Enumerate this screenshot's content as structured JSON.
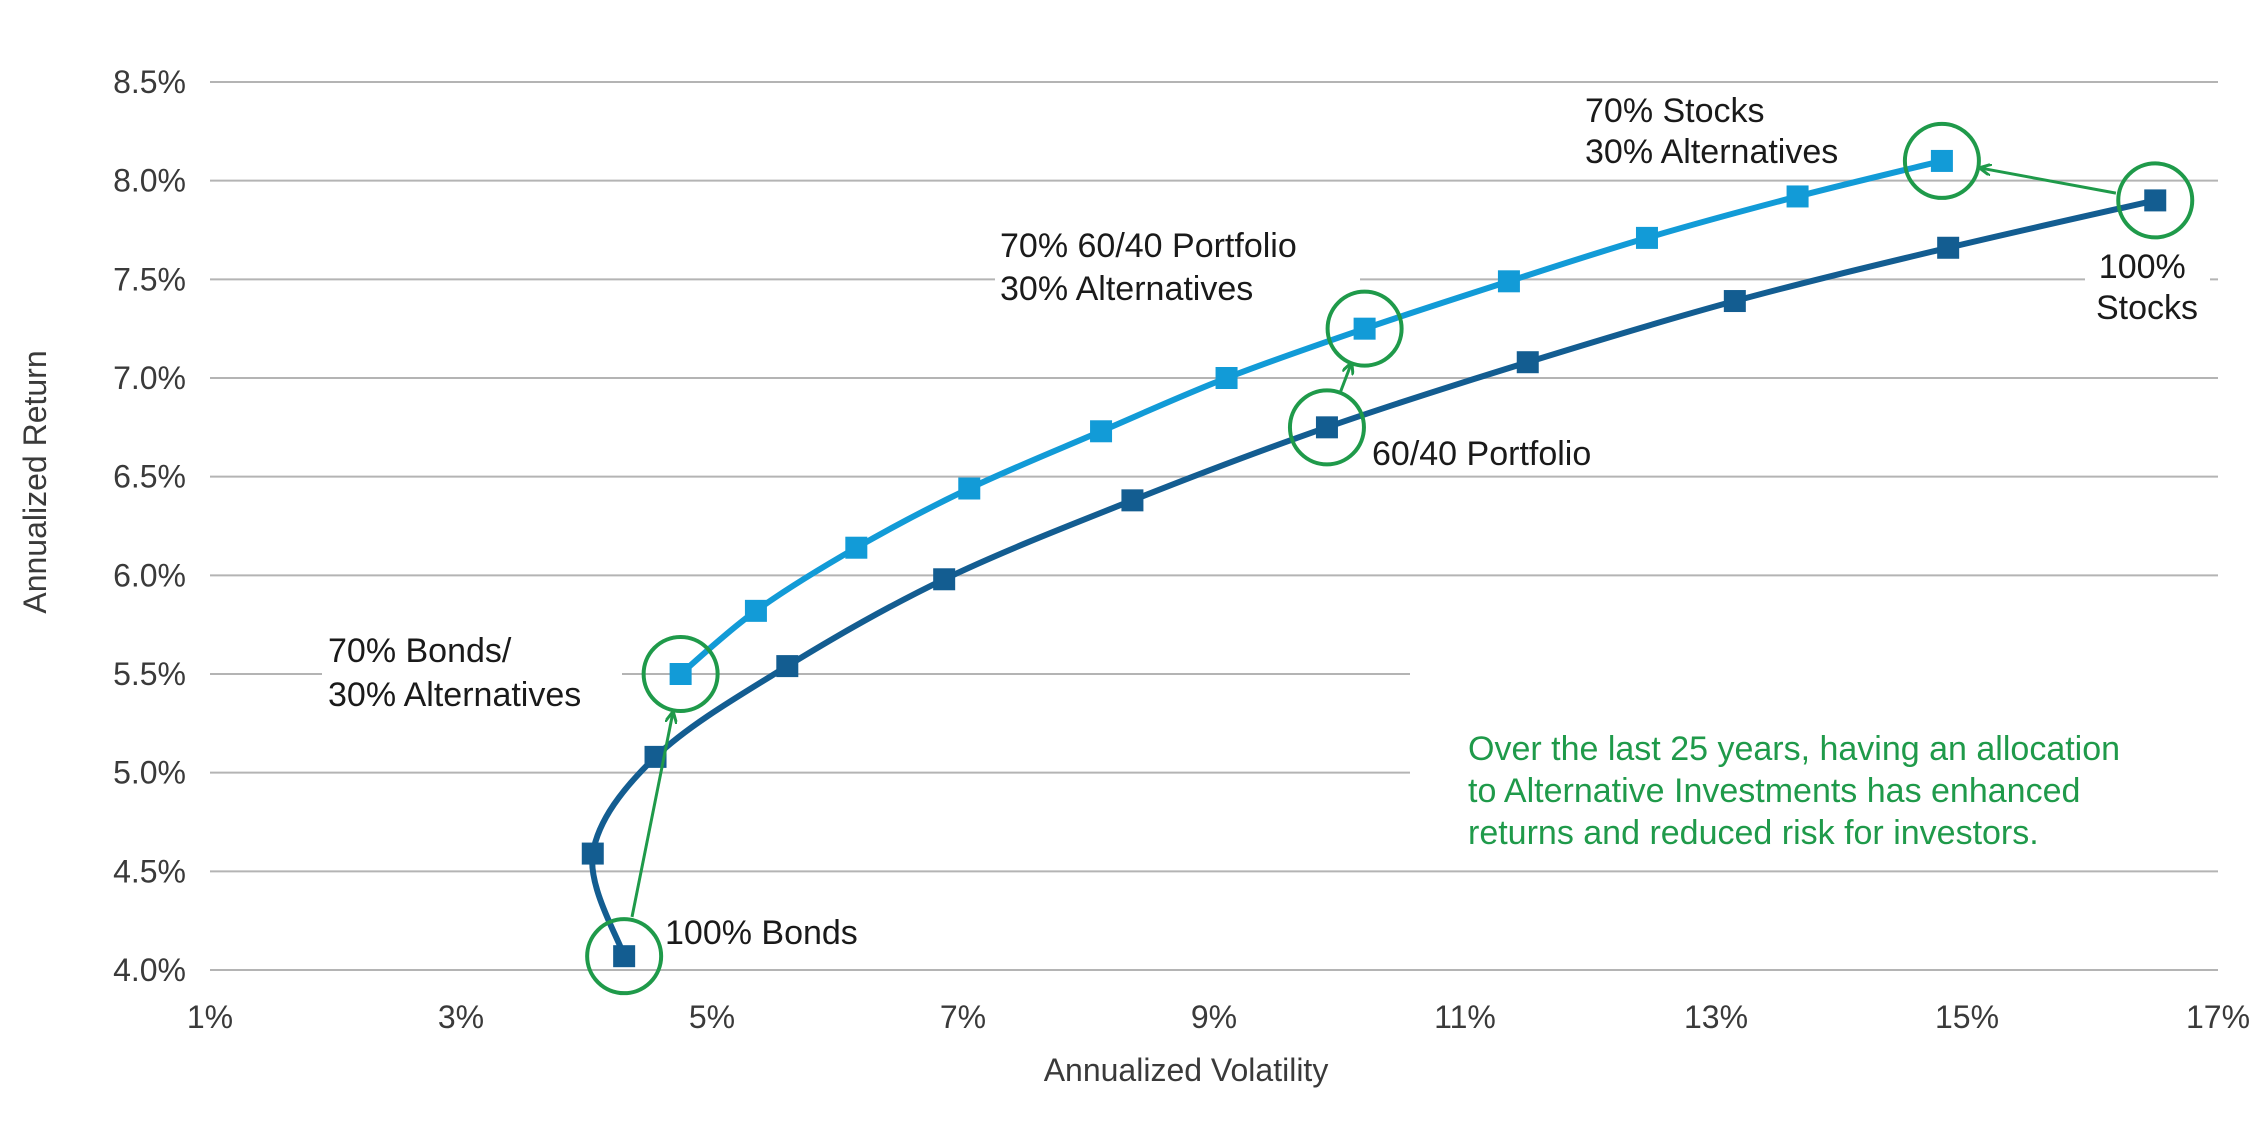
{
  "colors": {
    "allocation_series": "#129bd7",
    "base_series": "#135d91",
    "highlight": "#1f9a4a",
    "grid": "#b4b4b4",
    "text": "#1a1a1a"
  },
  "chart_data": {
    "type": "line",
    "xlabel": "Annualized Volatility",
    "ylabel": "Annualized Return",
    "xlim": [
      1,
      17
    ],
    "ylim": [
      4.0,
      8.5
    ],
    "x_ticks": [
      "1%",
      "3%",
      "5%",
      "7%",
      "9%",
      "11%",
      "13%",
      "15%",
      "17%"
    ],
    "y_ticks": [
      "4.0%",
      "4.5%",
      "5.0%",
      "5.5%",
      "6.0%",
      "6.5%",
      "7.0%",
      "7.5%",
      "8.0%",
      "8.5%"
    ],
    "grid": "horizontal",
    "series": [
      {
        "key": "with_alternatives",
        "color": "#129bd7",
        "points": [
          [
            4.75,
            5.5
          ],
          [
            5.35,
            5.82
          ],
          [
            6.15,
            6.14
          ],
          [
            7.05,
            6.44
          ],
          [
            8.1,
            6.73
          ],
          [
            9.1,
            7.0
          ],
          [
            10.2,
            7.25
          ],
          [
            11.35,
            7.49
          ],
          [
            12.45,
            7.71
          ],
          [
            13.65,
            7.92
          ],
          [
            14.8,
            8.1
          ]
        ]
      },
      {
        "key": "base",
        "color": "#135d91",
        "points": [
          [
            4.3,
            4.07
          ],
          [
            4.05,
            4.59
          ],
          [
            4.55,
            5.08
          ],
          [
            5.6,
            5.54
          ],
          [
            6.85,
            5.98
          ],
          [
            8.35,
            6.38
          ],
          [
            9.9,
            6.75
          ],
          [
            11.5,
            7.08
          ],
          [
            13.15,
            7.39
          ],
          [
            14.85,
            7.66
          ],
          [
            16.5,
            7.9
          ]
        ]
      }
    ],
    "highlights": [
      {
        "x": 4.3,
        "y": 4.07
      },
      {
        "x": 4.75,
        "y": 5.5
      },
      {
        "x": 9.9,
        "y": 6.75
      },
      {
        "x": 10.2,
        "y": 7.25
      },
      {
        "x": 16.5,
        "y": 7.9
      },
      {
        "x": 14.8,
        "y": 8.1
      }
    ],
    "annotations": {
      "bonds_alt": [
        "70% Bonds/",
        "30% Alternatives"
      ],
      "bonds": [
        "100% Bonds"
      ],
      "portfolio_alt": [
        "70% 60/40 Portfolio",
        "30% Alternatives"
      ],
      "portfolio": [
        "60/40 Portfolio"
      ],
      "stocks_alt": [
        "70% Stocks",
        "30% Alternatives"
      ],
      "stocks": [
        "100%",
        "Stocks"
      ]
    },
    "note": [
      "Over the last 25 years, having an allocation",
      "to Alternative Investments has enhanced",
      "returns and reduced risk for investors."
    ]
  }
}
